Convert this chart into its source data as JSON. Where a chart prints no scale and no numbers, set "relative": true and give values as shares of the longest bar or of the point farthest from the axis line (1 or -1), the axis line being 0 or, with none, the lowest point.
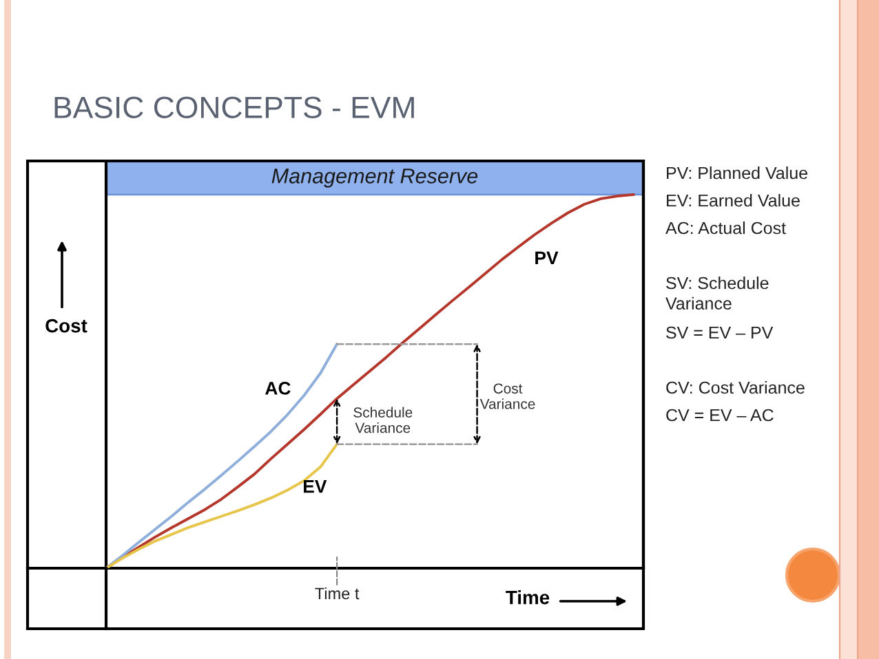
{
  "chart_data": {
    "type": "line",
    "title": "BASIC CONCEPTS - EVM",
    "xlabel": "Time",
    "ylabel": "Cost",
    "relative": true,
    "line_style": "solid",
    "categories": [
      null,
      null,
      null,
      null,
      null,
      null,
      null,
      null,
      null,
      null,
      null,
      null,
      null,
      null,
      null,
      null,
      null,
      null,
      null,
      null,
      null,
      null,
      null,
      null,
      null,
      null,
      null,
      null,
      null,
      null,
      null,
      null,
      null
    ],
    "series": [
      {
        "name": "PV",
        "color": "#b5362b",
        "values": [
          0,
          0.029,
          0.057,
          0.084,
          0.109,
          0.133,
          0.157,
          0.185,
          0.218,
          0.252,
          0.293,
          0.332,
          0.371,
          0.412,
          0.454,
          0.491,
          0.528,
          0.565,
          0.604,
          0.641,
          0.679,
          0.716,
          0.752,
          0.789,
          0.826,
          0.86,
          0.893,
          0.923,
          0.951,
          0.974,
          0.989,
          0.996,
          1.0
        ]
      },
      {
        "name": "AC",
        "color": "#8eaedb",
        "values": [
          0,
          0.034,
          0.07,
          0.105,
          0.14,
          0.177,
          0.212,
          0.249,
          0.287,
          0.326,
          0.366,
          0.411,
          0.462,
          0.522,
          0.6,
          null,
          null,
          null,
          null,
          null,
          null,
          null,
          null,
          null,
          null,
          null,
          null,
          null,
          null,
          null,
          null,
          null,
          null
        ]
      },
      {
        "name": "EV",
        "color": "#e6c54a",
        "values": [
          0,
          0.027,
          0.051,
          0.073,
          0.091,
          0.109,
          0.124,
          0.139,
          0.154,
          0.17,
          0.188,
          0.209,
          0.234,
          0.271,
          0.332,
          null,
          null,
          null,
          null,
          null,
          null,
          null,
          null,
          null,
          null,
          null,
          null,
          null,
          null,
          null,
          null,
          null,
          null
        ]
      }
    ],
    "bands": [
      {
        "axis": "y",
        "from": 1.0,
        "to": 1.09,
        "label": "Management Reserve",
        "color": "#8fb2ee"
      }
    ],
    "annotations": [
      "Schedule\nVariance",
      "Cost\nVariance",
      "Time t",
      "PV: Planned Value",
      "EV: Earned Value",
      "AC: Actual Cost",
      "SV: Schedule\nVariance",
      "SV = EV – PV",
      "CV: Cost Variance",
      "CV = EV – AC"
    ]
  }
}
